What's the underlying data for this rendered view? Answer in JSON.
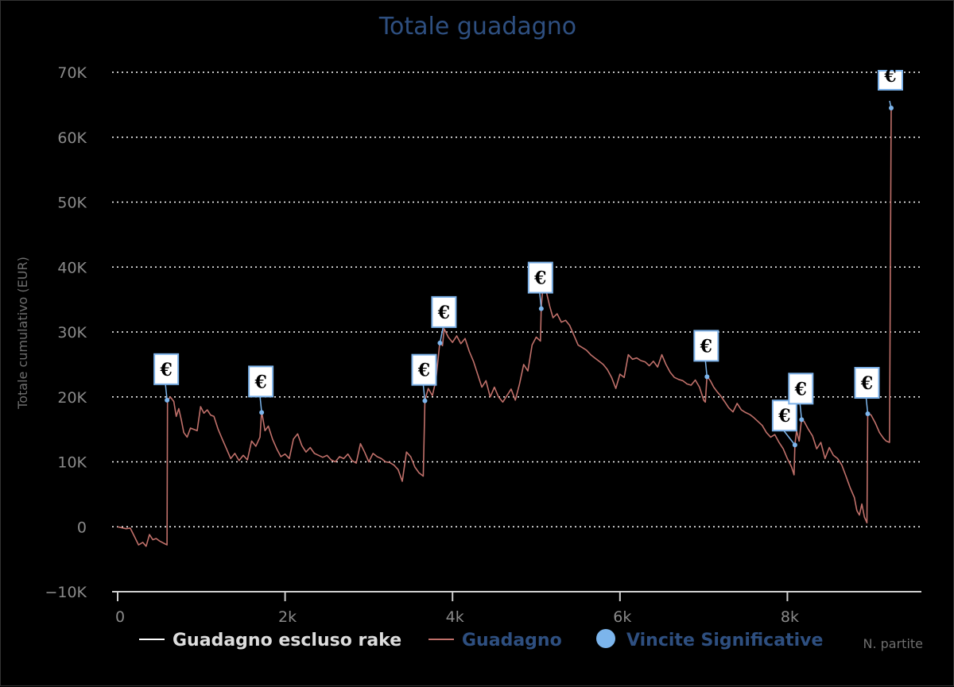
{
  "colors": {
    "background": "#000000",
    "guadagno": "#c0706a",
    "escluso_rake": "#ffffff",
    "vincite": "#7cb5ec",
    "title": "#2e4f80"
  },
  "chart_data": {
    "type": "line",
    "title": "Totale guadagno",
    "xlabel": "N. partite",
    "ylabel": "Totale cumulativo (EUR)",
    "xlim": [
      -100,
      9330
    ],
    "ylim": [
      -10000,
      70000
    ],
    "grid": true,
    "legend_position": "bottom",
    "x_ticks": [
      {
        "value": 0,
        "label": "0"
      },
      {
        "value": 2000,
        "label": "2k"
      },
      {
        "value": 4000,
        "label": "4k"
      },
      {
        "value": 6000,
        "label": "6k"
      },
      {
        "value": 8000,
        "label": "8k"
      }
    ],
    "y_ticks": [
      {
        "value": -10000,
        "label": "−10K"
      },
      {
        "value": 0,
        "label": "0"
      },
      {
        "value": 10000,
        "label": "10K"
      },
      {
        "value": 20000,
        "label": "20K"
      },
      {
        "value": 30000,
        "label": "30K"
      },
      {
        "value": 40000,
        "label": "40K"
      },
      {
        "value": 50000,
        "label": "50K"
      },
      {
        "value": 60000,
        "label": "60K"
      },
      {
        "value": 70000,
        "label": "70K"
      }
    ],
    "legend": [
      {
        "name": "Guadagno escluso rake",
        "symbol": "line",
        "color": "#ffffff",
        "text_color": "#dddddd"
      },
      {
        "name": "Guadagno",
        "symbol": "line",
        "color": "#c0706a",
        "text_color": "#2e4f80"
      },
      {
        "name": "Vincite Significative",
        "symbol": "dot",
        "color": "#7cb5ec",
        "text_color": "#2e4f80"
      }
    ],
    "series": [
      {
        "name": "Guadagno",
        "color": "#c0706a",
        "points": [
          [
            0,
            0
          ],
          [
            100,
            -300
          ],
          [
            150,
            -200
          ],
          [
            200,
            -1500
          ],
          [
            250,
            -2800
          ],
          [
            300,
            -2400
          ],
          [
            340,
            -3000
          ],
          [
            380,
            -1200
          ],
          [
            420,
            -2000
          ],
          [
            460,
            -1800
          ],
          [
            500,
            -2200
          ],
          [
            560,
            -2600
          ],
          [
            590,
            -2800
          ],
          [
            595,
            19500
          ],
          [
            630,
            20000
          ],
          [
            670,
            19300
          ],
          [
            700,
            17000
          ],
          [
            730,
            18200
          ],
          [
            760,
            16500
          ],
          [
            790,
            14500
          ],
          [
            830,
            13800
          ],
          [
            870,
            15200
          ],
          [
            910,
            15000
          ],
          [
            950,
            14800
          ],
          [
            990,
            18500
          ],
          [
            1030,
            17500
          ],
          [
            1070,
            18000
          ],
          [
            1110,
            17200
          ],
          [
            1150,
            17000
          ],
          [
            1200,
            15000
          ],
          [
            1250,
            13500
          ],
          [
            1300,
            12000
          ],
          [
            1350,
            10500
          ],
          [
            1400,
            11300
          ],
          [
            1450,
            10200
          ],
          [
            1500,
            11000
          ],
          [
            1550,
            10300
          ],
          [
            1600,
            13200
          ],
          [
            1650,
            12400
          ],
          [
            1700,
            13800
          ],
          [
            1720,
            17800
          ],
          [
            1760,
            14800
          ],
          [
            1800,
            15500
          ],
          [
            1850,
            13500
          ],
          [
            1900,
            12000
          ],
          [
            1950,
            10800
          ],
          [
            2000,
            11200
          ],
          [
            2050,
            10500
          ],
          [
            2100,
            13500
          ],
          [
            2150,
            14300
          ],
          [
            2200,
            12500
          ],
          [
            2250,
            11500
          ],
          [
            2300,
            12200
          ],
          [
            2350,
            11300
          ],
          [
            2400,
            11000
          ],
          [
            2450,
            10700
          ],
          [
            2500,
            11000
          ],
          [
            2550,
            10300
          ],
          [
            2600,
            10000
          ],
          [
            2650,
            10800
          ],
          [
            2700,
            10500
          ],
          [
            2750,
            11200
          ],
          [
            2800,
            10200
          ],
          [
            2850,
            9800
          ],
          [
            2900,
            12800
          ],
          [
            2950,
            11500
          ],
          [
            3000,
            10000
          ],
          [
            3050,
            11300
          ],
          [
            3100,
            10800
          ],
          [
            3150,
            10500
          ],
          [
            3200,
            10000
          ],
          [
            3250,
            9900
          ],
          [
            3300,
            9500
          ],
          [
            3350,
            8800
          ],
          [
            3400,
            7000
          ],
          [
            3450,
            11500
          ],
          [
            3500,
            10800
          ],
          [
            3550,
            9200
          ],
          [
            3600,
            8300
          ],
          [
            3650,
            7800
          ],
          [
            3670,
            19500
          ],
          [
            3710,
            21300
          ],
          [
            3760,
            20200
          ],
          [
            3800,
            22500
          ],
          [
            3850,
            28600
          ],
          [
            3880,
            27900
          ],
          [
            3900,
            30500
          ],
          [
            3950,
            29200
          ],
          [
            4000,
            28400
          ],
          [
            4050,
            29400
          ],
          [
            4100,
            28200
          ],
          [
            4150,
            29000
          ],
          [
            4200,
            27000
          ],
          [
            4250,
            25500
          ],
          [
            4300,
            23500
          ],
          [
            4350,
            21500
          ],
          [
            4400,
            22500
          ],
          [
            4450,
            20000
          ],
          [
            4500,
            21500
          ],
          [
            4550,
            20000
          ],
          [
            4600,
            19200
          ],
          [
            4650,
            20200
          ],
          [
            4700,
            21200
          ],
          [
            4750,
            19500
          ],
          [
            4800,
            22000
          ],
          [
            4850,
            25000
          ],
          [
            4900,
            24000
          ],
          [
            4950,
            28000
          ],
          [
            5000,
            29200
          ],
          [
            5050,
            28600
          ],
          [
            5060,
            33800
          ],
          [
            5080,
            37000
          ],
          [
            5120,
            36200
          ],
          [
            5160,
            34000
          ],
          [
            5200,
            32200
          ],
          [
            5250,
            32800
          ],
          [
            5300,
            31500
          ],
          [
            5350,
            31800
          ],
          [
            5400,
            31000
          ],
          [
            5450,
            29500
          ],
          [
            5500,
            28000
          ],
          [
            5550,
            27600
          ],
          [
            5600,
            27200
          ],
          [
            5650,
            26500
          ],
          [
            5700,
            26000
          ],
          [
            5750,
            25500
          ],
          [
            5800,
            25000
          ],
          [
            5850,
            24200
          ],
          [
            5900,
            23000
          ],
          [
            5950,
            21300
          ],
          [
            6000,
            23500
          ],
          [
            6050,
            23000
          ],
          [
            6100,
            26500
          ],
          [
            6150,
            25800
          ],
          [
            6200,
            26000
          ],
          [
            6250,
            25600
          ],
          [
            6300,
            25400
          ],
          [
            6350,
            24800
          ],
          [
            6400,
            25500
          ],
          [
            6450,
            24600
          ],
          [
            6500,
            26500
          ],
          [
            6550,
            25000
          ],
          [
            6600,
            23800
          ],
          [
            6650,
            23000
          ],
          [
            6700,
            22700
          ],
          [
            6750,
            22500
          ],
          [
            6800,
            22000
          ],
          [
            6850,
            21800
          ],
          [
            6900,
            22600
          ],
          [
            6950,
            21500
          ],
          [
            7000,
            19500
          ],
          [
            7020,
            19200
          ],
          [
            7040,
            23200
          ],
          [
            7080,
            22500
          ],
          [
            7120,
            21500
          ],
          [
            7160,
            20800
          ],
          [
            7200,
            20200
          ],
          [
            7250,
            19300
          ],
          [
            7300,
            18300
          ],
          [
            7350,
            17700
          ],
          [
            7400,
            19000
          ],
          [
            7450,
            18000
          ],
          [
            7500,
            17600
          ],
          [
            7550,
            17300
          ],
          [
            7600,
            16800
          ],
          [
            7650,
            16200
          ],
          [
            7700,
            15600
          ],
          [
            7750,
            14500
          ],
          [
            7800,
            13800
          ],
          [
            7850,
            14200
          ],
          [
            7900,
            13000
          ],
          [
            7950,
            12000
          ],
          [
            8000,
            10500
          ],
          [
            8050,
            9200
          ],
          [
            8080,
            8000
          ],
          [
            8090,
            12700
          ],
          [
            8110,
            14800
          ],
          [
            8140,
            13200
          ],
          [
            8170,
            16600
          ],
          [
            8200,
            16200
          ],
          [
            8250,
            15000
          ],
          [
            8300,
            14000
          ],
          [
            8350,
            12000
          ],
          [
            8400,
            13000
          ],
          [
            8450,
            10500
          ],
          [
            8500,
            12200
          ],
          [
            8550,
            11000
          ],
          [
            8600,
            10500
          ],
          [
            8650,
            9500
          ],
          [
            8700,
            7800
          ],
          [
            8750,
            6000
          ],
          [
            8800,
            4500
          ],
          [
            8830,
            2500
          ],
          [
            8860,
            1800
          ],
          [
            8890,
            3500
          ],
          [
            8920,
            1500
          ],
          [
            8950,
            600
          ],
          [
            8960,
            17500
          ],
          [
            9000,
            17200
          ],
          [
            9050,
            16000
          ],
          [
            9100,
            14500
          ],
          [
            9150,
            13600
          ],
          [
            9180,
            13200
          ],
          [
            9220,
            13000
          ],
          [
            9240,
            64500
          ]
        ]
      }
    ],
    "vincite_significative": [
      {
        "x": 590,
        "y": 19500,
        "label": "€"
      },
      {
        "x": 1720,
        "y": 17600,
        "label": "€"
      },
      {
        "x": 3670,
        "y": 19400,
        "label": "€"
      },
      {
        "x": 3850,
        "y": 28300,
        "label": "€"
      },
      {
        "x": 5060,
        "y": 33600,
        "label": "€"
      },
      {
        "x": 7040,
        "y": 23100,
        "label": "€"
      },
      {
        "x": 8090,
        "y": 12600,
        "label": "€"
      },
      {
        "x": 8170,
        "y": 16500,
        "label": "€"
      },
      {
        "x": 8960,
        "y": 17400,
        "label": "€"
      },
      {
        "x": 9240,
        "y": 64500,
        "label": "€"
      }
    ]
  }
}
